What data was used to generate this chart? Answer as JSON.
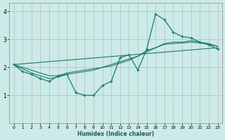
{
  "xlabel": "Humidex (Indice chaleur)",
  "bg_color": "#cceae7",
  "grid_color": "#b0b0b0",
  "line_color": "#1a7a6e",
  "xlim": [
    -0.5,
    23.5
  ],
  "ylim": [
    0,
    4.3
  ],
  "xticks": [
    0,
    1,
    2,
    3,
    4,
    5,
    6,
    7,
    8,
    9,
    10,
    11,
    12,
    13,
    14,
    15,
    16,
    17,
    18,
    19,
    20,
    21,
    22,
    23
  ],
  "yticks": [
    1,
    2,
    3,
    4
  ],
  "line1_x": [
    0,
    1,
    2,
    3,
    4,
    5,
    6,
    7,
    8,
    9,
    10,
    11,
    12,
    13,
    14,
    15,
    16,
    17,
    18,
    19,
    20,
    21,
    22,
    23
  ],
  "line1_y": [
    2.1,
    1.85,
    1.75,
    1.6,
    1.5,
    1.7,
    1.75,
    1.1,
    1.0,
    1.0,
    1.35,
    1.5,
    2.35,
    2.45,
    1.9,
    2.65,
    3.9,
    3.7,
    3.25,
    3.1,
    3.05,
    2.9,
    2.8,
    2.65
  ],
  "line2_x": [
    0,
    23
  ],
  "line2_y": [
    2.1,
    2.7
  ],
  "line3_x": [
    0,
    2,
    3,
    4,
    5,
    6,
    7,
    8,
    9,
    10,
    11,
    12,
    13,
    14,
    15,
    16,
    17,
    18,
    19,
    20,
    21,
    22,
    23
  ],
  "line3_y": [
    2.1,
    1.8,
    1.7,
    1.6,
    1.65,
    1.75,
    1.8,
    1.85,
    1.9,
    2.0,
    2.1,
    2.2,
    2.3,
    2.4,
    2.6,
    2.7,
    2.85,
    2.9,
    2.9,
    2.95,
    2.9,
    2.85,
    2.75
  ],
  "line4_x": [
    0,
    2,
    3,
    4,
    5,
    6,
    7,
    8,
    9,
    10,
    11,
    12,
    13,
    14,
    15,
    16,
    17,
    18,
    19,
    20,
    21,
    22,
    23
  ],
  "line4_y": [
    2.1,
    1.9,
    1.8,
    1.7,
    1.7,
    1.8,
    1.85,
    1.9,
    1.95,
    2.0,
    2.05,
    2.15,
    2.25,
    2.4,
    2.55,
    2.7,
    2.82,
    2.85,
    2.87,
    2.9,
    2.87,
    2.82,
    2.75
  ]
}
